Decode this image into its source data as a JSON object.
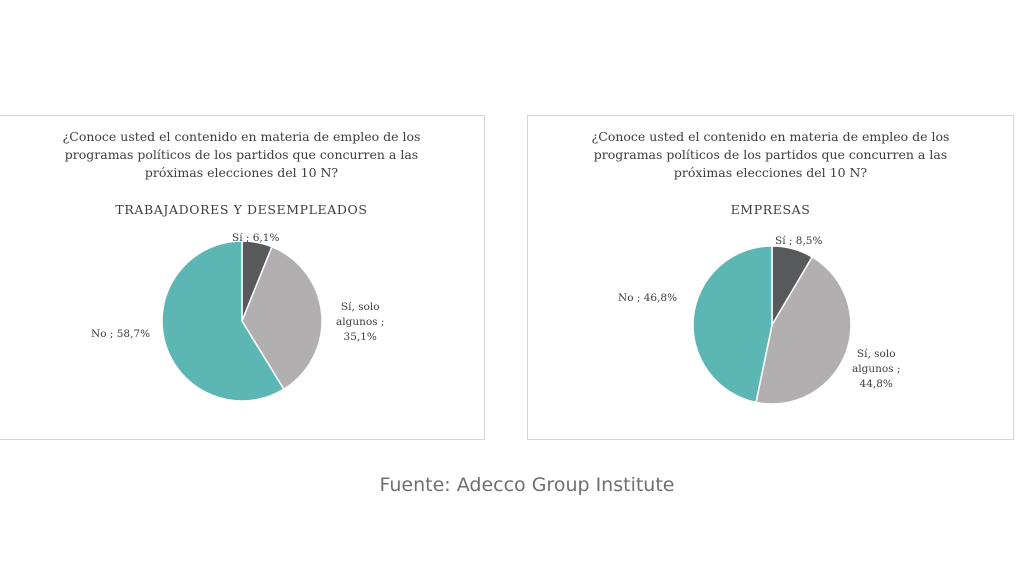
{
  "charts": [
    {
      "question_lines": [
        "¿Conoce usted el contenido en materia de empleo de los",
        "programas políticos de los partidos que concurren a las",
        "próximas elecciones del 10 N?"
      ],
      "subtitle": "TRABAJADORES Y DESEMPLEADOS",
      "slice_labels": [
        [
          "Sí ; 6,1%"
        ],
        [
          "Sí, solo",
          "algunos ;",
          "35,1%"
        ],
        [
          "No ; 58,7%"
        ]
      ]
    },
    {
      "question_lines": [
        "¿Conoce usted el contenido en materia de empleo de los",
        "programas políticos de los partidos que concurren a las",
        "próximas elecciones del 10 N?"
      ],
      "subtitle": "EMPRESAS",
      "slice_labels": [
        [
          "Sí ; 8,5%"
        ],
        [
          "Sí, solo",
          "algunos ;",
          "44,8%"
        ],
        [
          "No ; 46,8%"
        ]
      ]
    }
  ],
  "chart_data": [
    {
      "type": "pie",
      "title": "¿Conoce usted el contenido en materia de empleo de los programas políticos de los partidos que concurren a las próximas elecciones del 10 N?",
      "subtitle": "TRABAJADORES Y DESEMPLEADOS",
      "labels": [
        "Sí",
        "Sí, solo algunos",
        "No"
      ],
      "values": [
        6.1,
        35.1,
        58.7
      ],
      "colors": [
        "#58595b",
        "#b1afaf",
        "#5cb6b3"
      ]
    },
    {
      "type": "pie",
      "title": "¿Conoce usted el contenido en materia de empleo de los programas políticos de los partidos que concurren a las próximas elecciones del 10 N?",
      "subtitle": "EMPRESAS",
      "labels": [
        "Sí",
        "Sí, solo algunos",
        "No"
      ],
      "values": [
        8.5,
        44.8,
        46.8
      ],
      "colors": [
        "#58595b",
        "#b1afaf",
        "#5cb6b3"
      ]
    }
  ],
  "source": "Fuente: Adecco Group Institute"
}
